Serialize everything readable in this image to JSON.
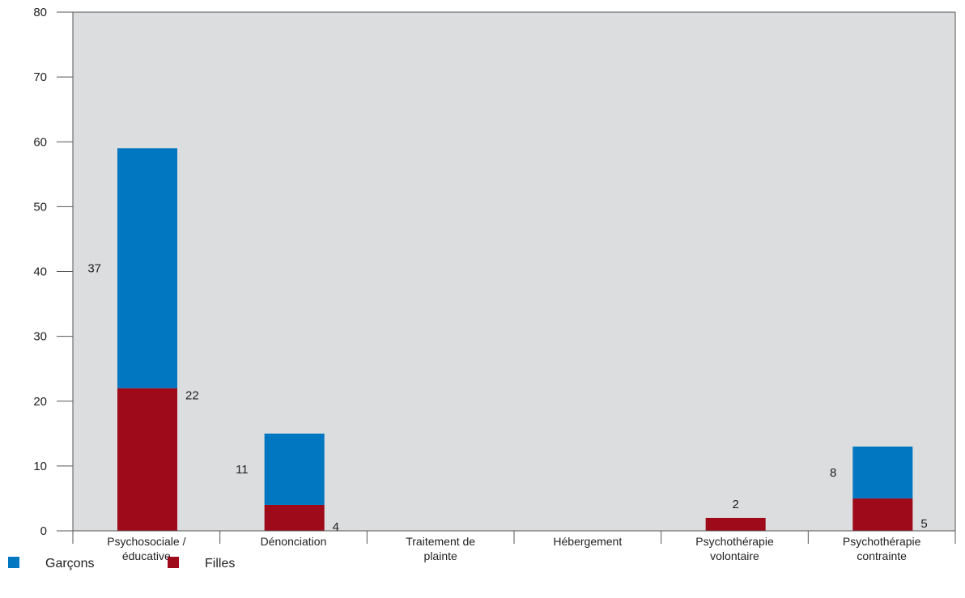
{
  "chart_data": {
    "type": "bar",
    "stacked": true,
    "title": "",
    "xlabel": "",
    "ylabel": "",
    "ylim": [
      0,
      80
    ],
    "yticks": [
      0,
      10,
      20,
      30,
      40,
      50,
      60,
      70,
      80
    ],
    "grid": false,
    "legend": "bottom-left",
    "categories": [
      [
        "Psychosociale /",
        "éducative"
      ],
      [
        "Dénonciation"
      ],
      [
        "Traitement de",
        "plainte"
      ],
      [
        "Hébergement"
      ],
      [
        "Psychothérapie",
        "volontaire"
      ],
      [
        "Psychothérapie",
        "contrainte"
      ]
    ],
    "series": [
      {
        "name": "Filles",
        "color": "#9e0a1a",
        "values": [
          22,
          4,
          0,
          0,
          2,
          5
        ],
        "labels": [
          "22",
          "4",
          "",
          "",
          "2",
          "5"
        ]
      },
      {
        "name": "Garçons",
        "color": "#0077c0",
        "values": [
          37,
          11,
          0,
          0,
          0,
          8
        ],
        "labels": [
          "37",
          "11",
          "",
          "",
          "",
          "8"
        ]
      }
    ],
    "legend_order": [
      "Garçons",
      "Filles"
    ],
    "plot_background": "#dcdddf",
    "axis_color": "#555555"
  }
}
